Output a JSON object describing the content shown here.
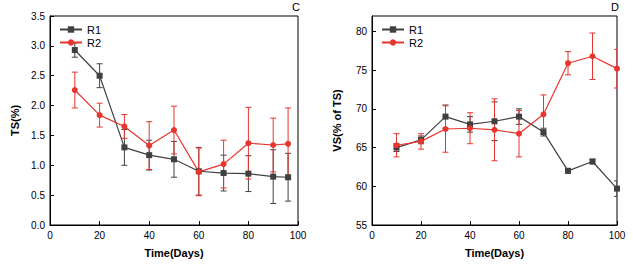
{
  "chart_data": [
    {
      "type": "line",
      "annotations": [
        "C"
      ],
      "x_label": "Time(Days)",
      "y_label": "TS(%)",
      "x": [
        10,
        20,
        30,
        40,
        50,
        60,
        70,
        80,
        90,
        96
      ],
      "series": [
        {
          "name": "R1",
          "color": "#404040",
          "marker": "square",
          "values": [
            2.93,
            2.5,
            1.3,
            1.17,
            1.1,
            0.9,
            0.87,
            0.86,
            0.81,
            0.8
          ],
          "errors": [
            0.12,
            0.2,
            0.3,
            0.25,
            0.3,
            0.4,
            0.3,
            0.3,
            0.45,
            0.4
          ]
        },
        {
          "name": "R2",
          "color": "#e8352e",
          "marker": "circle",
          "values": [
            2.26,
            1.84,
            1.65,
            1.33,
            1.59,
            0.89,
            1.02,
            1.37,
            1.34,
            1.36
          ],
          "errors": [
            0.3,
            0.2,
            0.2,
            0.4,
            0.4,
            0.4,
            0.4,
            0.6,
            0.45,
            0.6
          ]
        }
      ],
      "xlim": [
        0,
        100
      ],
      "xticks": [
        0,
        20,
        40,
        60,
        80,
        100
      ],
      "ylim": [
        0,
        3.5
      ],
      "yticks": [
        {
          "value": 0,
          "label": "0.0"
        },
        0.5,
        {
          "value": 1,
          "label": "1.0"
        },
        1.5,
        {
          "value": 2,
          "label": "2.0"
        },
        2.5,
        {
          "value": 3,
          "label": "3.0"
        },
        3.5
      ],
      "grid": false,
      "legend": "upper left"
    },
    {
      "type": "line",
      "annotations": [
        "D"
      ],
      "x_label": "Time(Days)",
      "y_label": "VS(% of TS)",
      "x": [
        10,
        20,
        30,
        40,
        50,
        60,
        70,
        80,
        90,
        100
      ],
      "series": [
        {
          "name": "R1",
          "color": "#404040",
          "marker": "square",
          "values": [
            65,
            66,
            69,
            68,
            68.4,
            69,
            67,
            62,
            63.2,
            59.7
          ],
          "errors": [
            0.5,
            0.5,
            1.5,
            1,
            2.5,
            1,
            0.5,
            0.3,
            0.3,
            1
          ]
        },
        {
          "name": "R2",
          "color": "#e8352e",
          "marker": "circle",
          "values": [
            65.3,
            65.8,
            67.4,
            67.5,
            67.3,
            66.8,
            69.3,
            75.9,
            76.8,
            75.2
          ],
          "errors": [
            1.5,
            1,
            3,
            2,
            4,
            3,
            2.5,
            1.5,
            3,
            2.5
          ]
        }
      ],
      "xlim": [
        0,
        100
      ],
      "xticks": [
        0,
        20,
        40,
        60,
        80,
        100
      ],
      "ylim": [
        55,
        82
      ],
      "yticks": [
        55,
        60,
        65,
        70,
        75,
        80
      ],
      "grid": false,
      "legend": "upper left"
    }
  ]
}
